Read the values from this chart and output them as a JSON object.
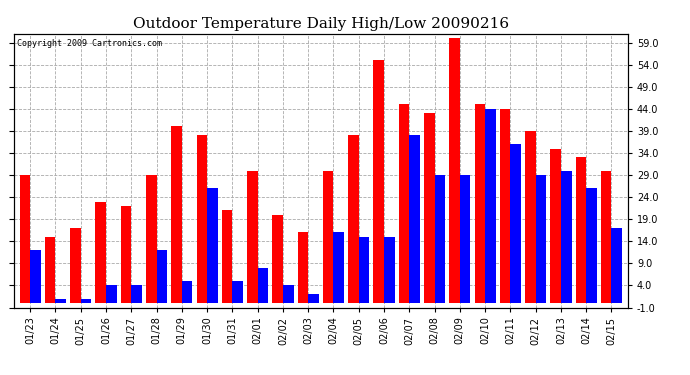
{
  "title": "Outdoor Temperature Daily High/Low 20090216",
  "copyright_text": "Copyright 2009 Cartronics.com",
  "dates": [
    "01/23",
    "01/24",
    "01/25",
    "01/26",
    "01/27",
    "01/28",
    "01/29",
    "01/30",
    "01/31",
    "02/01",
    "02/02",
    "02/03",
    "02/04",
    "02/05",
    "02/06",
    "02/07",
    "02/08",
    "02/09",
    "02/10",
    "02/11",
    "02/12",
    "02/13",
    "02/14",
    "02/15"
  ],
  "highs": [
    29,
    15,
    17,
    23,
    22,
    29,
    40,
    38,
    21,
    30,
    20,
    16,
    30,
    38,
    55,
    45,
    43,
    60,
    45,
    44,
    39,
    35,
    33,
    30
  ],
  "lows": [
    12,
    1,
    1,
    4,
    4,
    12,
    5,
    26,
    5,
    8,
    4,
    2,
    16,
    15,
    15,
    38,
    29,
    29,
    44,
    36,
    29,
    30,
    26,
    17
  ],
  "bar_color_high": "#FF0000",
  "bar_color_low": "#0000FF",
  "background_color": "#FFFFFF",
  "grid_color": "#AAAAAA",
  "ymin": -1.0,
  "ymax": 61.0,
  "yticks": [
    -1.0,
    4.0,
    9.0,
    14.0,
    19.0,
    24.0,
    29.0,
    34.0,
    39.0,
    44.0,
    49.0,
    54.0,
    59.0
  ],
  "title_fontsize": 11,
  "tick_fontsize": 7,
  "bar_width": 0.42,
  "fig_width": 6.9,
  "fig_height": 3.75,
  "dpi": 100
}
